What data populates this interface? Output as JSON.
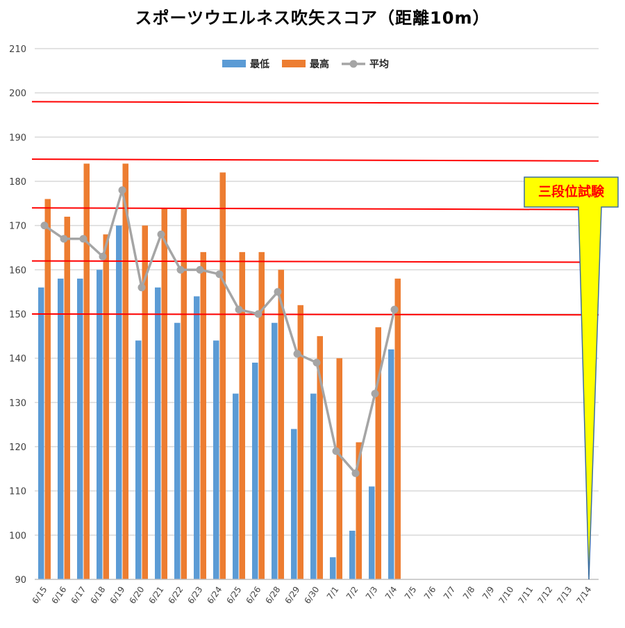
{
  "chart_data": {
    "type": "bar",
    "title": "スポーツウエルネス吹矢スコア（距離10m）",
    "categories": [
      "6/15",
      "6/16",
      "6/17",
      "6/18",
      "6/19",
      "6/20",
      "6/21",
      "6/22",
      "6/23",
      "6/24",
      "6/25",
      "6/26",
      "6/28",
      "6/29",
      "6/30",
      "7/1",
      "7/2",
      "7/3",
      "7/4",
      "7/5",
      "7/6",
      "7/7",
      "7/8",
      "7/9",
      "7/10",
      "7/11",
      "7/12",
      "7/13",
      "7/14"
    ],
    "series": [
      {
        "name": "最低",
        "type": "bar",
        "color": "#5B9BD5",
        "values": [
          156,
          158,
          158,
          160,
          170,
          144,
          156,
          148,
          154,
          144,
          132,
          139,
          148,
          124,
          132,
          95,
          101,
          111,
          142,
          null,
          null,
          null,
          null,
          null,
          null,
          null,
          null,
          null,
          null
        ]
      },
      {
        "name": "最高",
        "type": "bar",
        "color": "#ED7D31",
        "values": [
          176,
          172,
          184,
          168,
          184,
          170,
          174,
          174,
          164,
          182,
          164,
          164,
          160,
          152,
          145,
          140,
          121,
          147,
          158,
          null,
          null,
          null,
          null,
          null,
          null,
          null,
          null,
          null,
          null
        ]
      },
      {
        "name": "平均",
        "type": "line",
        "color": "#A5A5A5",
        "values": [
          170,
          167,
          167,
          163,
          178,
          156,
          168,
          160,
          160,
          159,
          151,
          150,
          155,
          141,
          139,
          119,
          114,
          132,
          151,
          null,
          null,
          null,
          null,
          null,
          null,
          null,
          null,
          null,
          null
        ]
      }
    ],
    "ylim": [
      90,
      210
    ],
    "yticks": [
      90,
      100,
      110,
      120,
      130,
      140,
      150,
      160,
      170,
      180,
      190,
      200,
      210
    ],
    "grid": true,
    "legend": "top",
    "reference_lines": [
      {
        "y_left": 198,
        "y_right": 197.6,
        "color": "#FF0000"
      },
      {
        "y_left": 185,
        "y_right": 184.6,
        "color": "#FF0000"
      },
      {
        "y_left": 174,
        "y_right": 173.6,
        "color": "#FF0000"
      },
      {
        "y_left": 162,
        "y_right": 161.7,
        "color": "#FF0000"
      },
      {
        "y_left": 150,
        "y_right": 149.8,
        "color": "#FF0000"
      }
    ],
    "callout": {
      "text": "三段位試験",
      "category": "7/14",
      "text_color": "#FF0000",
      "fill": "#FFFF00"
    }
  }
}
